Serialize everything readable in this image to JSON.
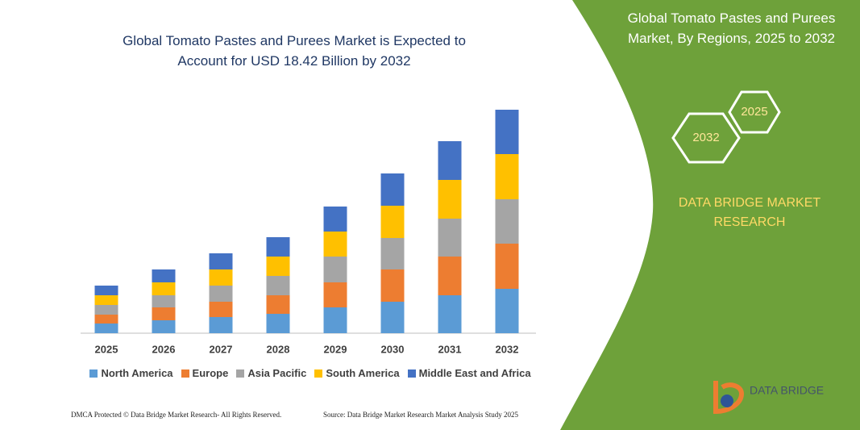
{
  "chart_data": {
    "type": "bar",
    "stacked": true,
    "title": "Global Tomato Pastes and Purees Market is Expected to Account for USD 18.42 Billion by 2032",
    "categories": [
      "2025",
      "2026",
      "2027",
      "2028",
      "2029",
      "2030",
      "2031",
      "2032"
    ],
    "series": [
      {
        "name": "North America",
        "color": "#5b9bd5",
        "values": [
          12,
          16,
          20,
          24,
          32,
          39,
          47,
          55
        ]
      },
      {
        "name": "Europe",
        "color": "#ed7d31",
        "values": [
          11,
          16,
          19,
          23,
          31,
          40,
          48,
          56
        ]
      },
      {
        "name": "Asia Pacific",
        "color": "#a5a5a5",
        "values": [
          12,
          15,
          20,
          24,
          32,
          39,
          47,
          55
        ]
      },
      {
        "name": "South America",
        "color": "#ffc000",
        "values": [
          12,
          16,
          20,
          24,
          31,
          40,
          48,
          56
        ]
      },
      {
        "name": "Middle East and Africa",
        "color": "#4472c4",
        "values": [
          12,
          16,
          20,
          24,
          31,
          40,
          48,
          55
        ]
      }
    ],
    "ylim": [
      0,
      277
    ]
  },
  "side_panel": {
    "title": "Global Tomato Pastes and Purees Market, By Regions, 2025 to 2032",
    "hexagons": [
      "2025",
      "2032"
    ],
    "brand": "DATA BRIDGE MARKET RESEARCH"
  },
  "footer": {
    "left": "DMCA Protected © Data Bridge Market Research- All Rights Reserved.",
    "right": "Source: Data Bridge Market Research Market Analysis Study 2025"
  },
  "logo": {
    "text": "DATA BRIDGE"
  }
}
